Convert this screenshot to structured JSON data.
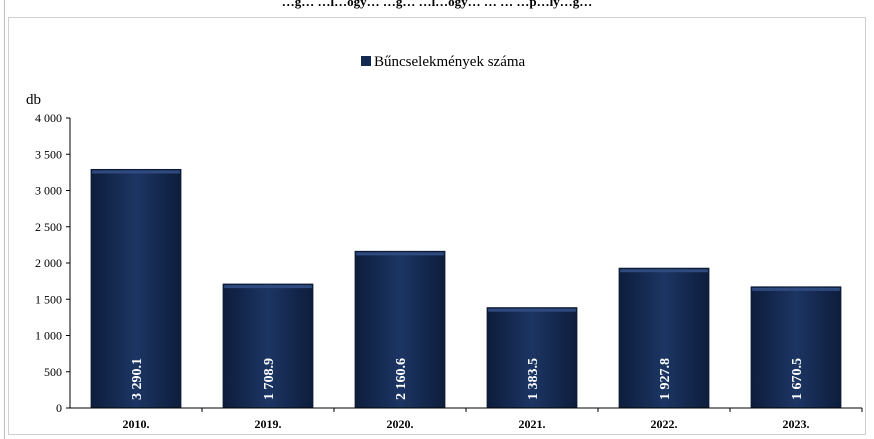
{
  "title": "…g… …l…ogy… …g… …l…ogy… … … …p…ly…g…",
  "chart_data": {
    "type": "bar",
    "categories": [
      "2010.",
      "2019.",
      "2020.",
      "2021.",
      "2022.",
      "2023."
    ],
    "series": [
      {
        "name": "Bűncselekmények száma",
        "values": [
          3290.1,
          1708.9,
          2160.6,
          1383.5,
          1927.8,
          1670.5
        ]
      }
    ],
    "value_labels": [
      "3 290.1",
      "1 708.9",
      "2 160.6",
      "1 383.5",
      "1 927.8",
      "1 670.5"
    ],
    "ylabel": "db",
    "ylim": [
      0,
      4000
    ],
    "yticks": [
      0,
      500,
      1000,
      1500,
      2000,
      2500,
      3000,
      3500,
      4000
    ],
    "ytick_labels": [
      "0",
      "500",
      "1 000",
      "1 500",
      "2 000",
      "2 500",
      "3 000",
      "3 500",
      "4 000"
    ],
    "grid": false,
    "legend_position": "top-center",
    "colors": {
      "bar": "#14294f",
      "bar_edge": "#0c1a36",
      "bar_highlight": "#2f4a7e",
      "axis": "#000000",
      "label_text": "#ffffff"
    }
  }
}
